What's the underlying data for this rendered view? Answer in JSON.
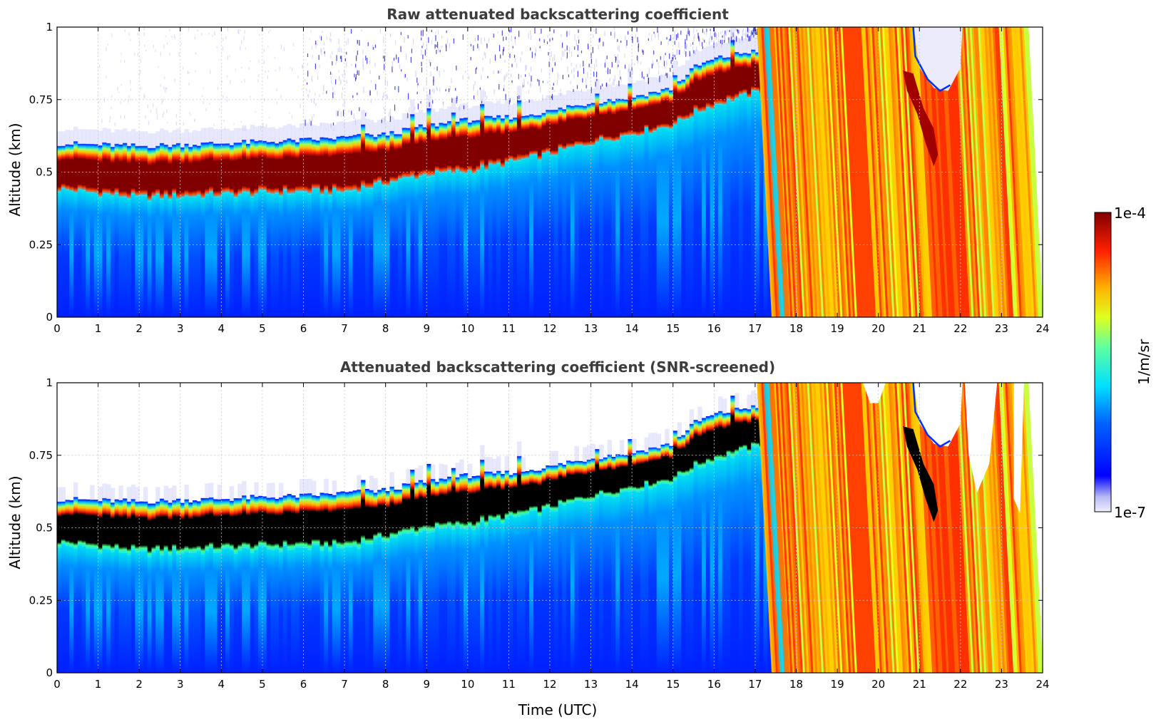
{
  "colors": {
    "jet_high": "#800000",
    "jet_low": "#0000ff",
    "masked_cloud": "#000000",
    "background": "#ffffff"
  },
  "chart_data": [
    {
      "type": "heatmap",
      "title": "Raw attenuated backscattering coefficient",
      "xlabel": "",
      "ylabel": "Altitude (km)",
      "xlim": [
        0,
        24
      ],
      "ylim": [
        0,
        1
      ],
      "xticks": [
        "0",
        "1",
        "2",
        "3",
        "4",
        "5",
        "6",
        "7",
        "8",
        "9",
        "10",
        "11",
        "12",
        "13",
        "14",
        "15",
        "16",
        "17",
        "18",
        "19",
        "20",
        "21",
        "22",
        "23",
        "24"
      ],
      "yticks": [
        "0",
        "0.25",
        "0.5",
        "0.75",
        "1"
      ],
      "grid": true,
      "cloud_layer": {
        "time": [
          0,
          2,
          4,
          6,
          7,
          8,
          9,
          10,
          11,
          12,
          13,
          14,
          15,
          15.5,
          16,
          17,
          17.4
        ],
        "base_km": [
          0.44,
          0.41,
          0.42,
          0.43,
          0.43,
          0.46,
          0.49,
          0.5,
          0.53,
          0.56,
          0.6,
          0.63,
          0.66,
          0.7,
          0.73,
          0.77,
          0.79
        ],
        "top_km": [
          0.6,
          0.59,
          0.6,
          0.61,
          0.62,
          0.63,
          0.66,
          0.68,
          0.69,
          0.71,
          0.74,
          0.76,
          0.79,
          0.86,
          0.89,
          0.92,
          0.92
        ]
      },
      "precip_start_time": 17.4,
      "masked": false
    },
    {
      "type": "heatmap",
      "title": "Attenuated backscattering coefficient (SNR-screened)",
      "xlabel": "Time (UTC)",
      "ylabel": "Altitude (km)",
      "xlim": [
        0,
        24
      ],
      "ylim": [
        0,
        1
      ],
      "xticks": [
        "0",
        "1",
        "2",
        "3",
        "4",
        "5",
        "6",
        "7",
        "8",
        "9",
        "10",
        "11",
        "12",
        "13",
        "14",
        "15",
        "16",
        "17",
        "18",
        "19",
        "20",
        "21",
        "22",
        "23",
        "24"
      ],
      "yticks": [
        "0",
        "0.25",
        "0.5",
        "0.75",
        "1"
      ],
      "grid": true,
      "cloud_layer": {
        "time": [
          0,
          2,
          4,
          6,
          7,
          8,
          9,
          10,
          11,
          12,
          13,
          14,
          15,
          15.5,
          16,
          17,
          17.4
        ],
        "base_km": [
          0.44,
          0.41,
          0.42,
          0.43,
          0.43,
          0.46,
          0.49,
          0.5,
          0.53,
          0.56,
          0.6,
          0.63,
          0.66,
          0.7,
          0.73,
          0.77,
          0.79
        ],
        "top_km": [
          0.6,
          0.59,
          0.6,
          0.61,
          0.62,
          0.63,
          0.66,
          0.68,
          0.69,
          0.71,
          0.74,
          0.76,
          0.79,
          0.86,
          0.89,
          0.92,
          0.92
        ]
      },
      "precip_start_time": 17.4,
      "masked": true
    }
  ],
  "colorbar": {
    "label": "1/m/sr",
    "max_label": "1e-4",
    "min_label": "1e-7",
    "scale": "log",
    "range": [
      1e-07,
      0.0001
    ]
  }
}
